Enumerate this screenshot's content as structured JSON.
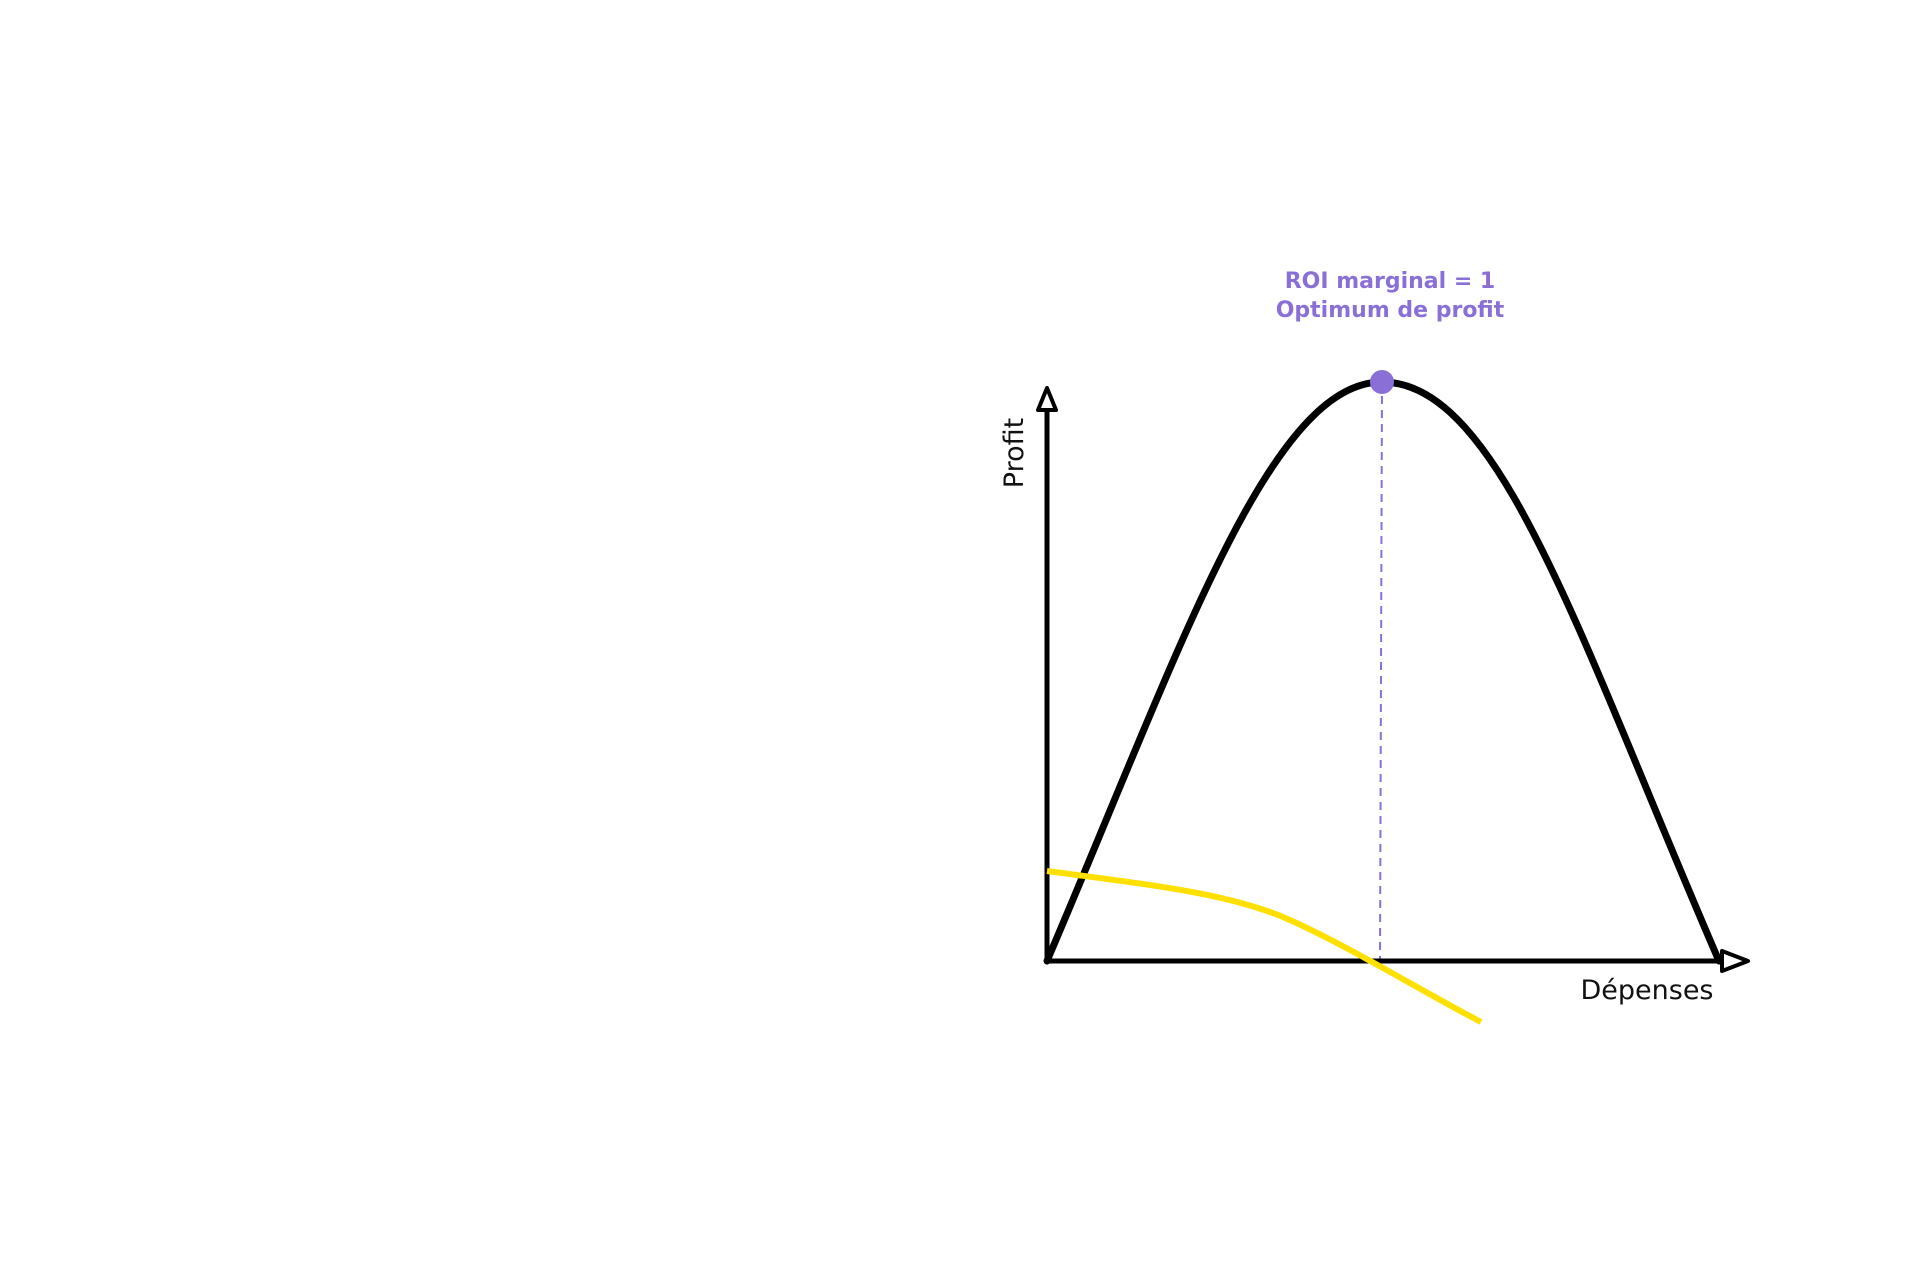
{
  "annotation": {
    "line1": "ROI marginal = 1",
    "line2": "Optimum de profit"
  },
  "axes": {
    "y_label": "Profit",
    "x_label": "Dépenses"
  }
}
